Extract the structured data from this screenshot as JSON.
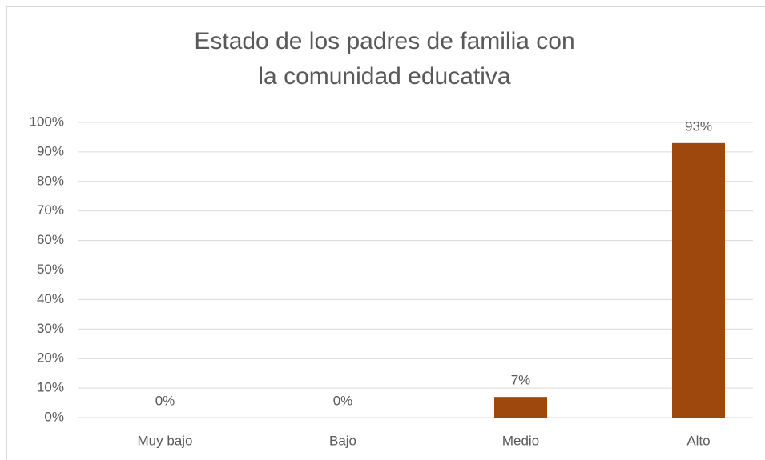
{
  "chart_data": {
    "type": "bar",
    "title": "Estado de los padres de familia con la comunidad educativa",
    "categories": [
      "Muy bajo",
      "Bajo",
      "Medio",
      "Alto"
    ],
    "values": [
      0,
      0,
      7,
      93
    ],
    "value_labels": [
      "0%",
      "0%",
      "7%",
      "93%"
    ],
    "color": "#9e480e",
    "ylim": [
      0,
      100
    ],
    "yticks": [
      {
        "value": 0,
        "label": "0%"
      },
      {
        "value": 10,
        "label": "10%"
      },
      {
        "value": 20,
        "label": "20%"
      },
      {
        "value": 30,
        "label": "30%"
      },
      {
        "value": 40,
        "label": "40%"
      },
      {
        "value": 50,
        "label": "50%"
      },
      {
        "value": 60,
        "label": "60%"
      },
      {
        "value": 70,
        "label": "70%"
      },
      {
        "value": 80,
        "label": "80%"
      },
      {
        "value": 90,
        "label": "90%"
      },
      {
        "value": 100,
        "label": "100%"
      }
    ],
    "grid": true
  }
}
